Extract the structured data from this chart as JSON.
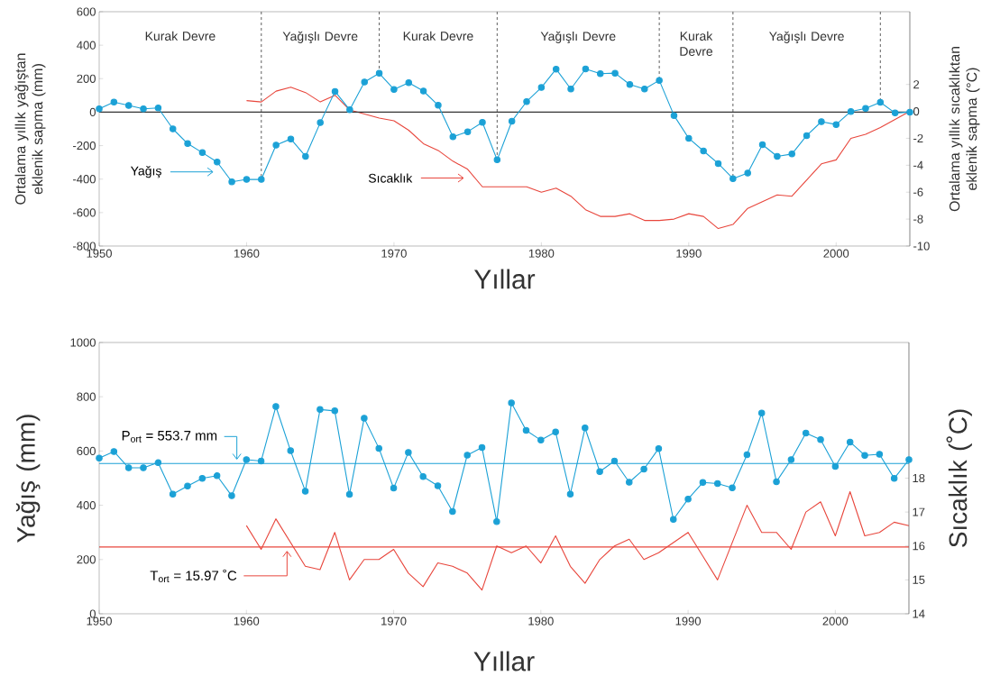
{
  "chart_data": [
    {
      "type": "line",
      "xlabel": "Yıllar",
      "ylabel": "Ortalama yıllık yağıştan eklenik sapma (mm)",
      "y2label": "Ortalama yıllık sıcaklıktan eklenik sapma (°C)",
      "xlim": [
        1950,
        2005
      ],
      "xticks": [
        1950,
        1960,
        1970,
        1980,
        1990,
        2000
      ],
      "ylim": [
        -800,
        600
      ],
      "yticks": [
        -800,
        -600,
        -400,
        -200,
        0,
        200,
        400,
        600
      ],
      "y2lim": [
        -10,
        7.4
      ],
      "y2ticks": [
        -10,
        -8,
        -6,
        -4,
        -2,
        0,
        2
      ],
      "legend": "bottom left",
      "series": [
        {
          "name": "Yağış",
          "color": "#1ba1d6",
          "marker": "circle",
          "x": [
            1950,
            1951,
            1952,
            1953,
            1954,
            1955,
            1956,
            1957,
            1958,
            1959,
            1960,
            1961,
            1962,
            1963,
            1964,
            1965,
            1966,
            1967,
            1968,
            1969,
            1970,
            1971,
            1972,
            1973,
            1974,
            1975,
            1976,
            1977,
            1978,
            1979,
            1980,
            1981,
            1982,
            1983,
            1984,
            1985,
            1986,
            1987,
            1988,
            1989,
            1990,
            1991,
            1992,
            1993,
            1994,
            1995,
            1996,
            1997,
            1998,
            1999,
            2000,
            2001,
            2002,
            2003,
            2004,
            2005
          ],
          "values": [
            20,
            60,
            40,
            20,
            25,
            -100,
            -188,
            -242,
            -298,
            -416,
            -402,
            -402,
            -197,
            -160,
            -264,
            -63,
            124,
            14,
            180,
            232,
            136,
            176,
            126,
            41,
            -147,
            -117,
            -61,
            -285,
            -54,
            63,
            147,
            257,
            138,
            258,
            230,
            233,
            165,
            138,
            190,
            -20,
            -156,
            -232,
            -307,
            -397,
            -364,
            -194,
            -264,
            -250,
            -140,
            -57,
            -74,
            4,
            22,
            59,
            -5,
            0
          ]
        },
        {
          "name": "Sıcaklık",
          "color": "#e8463c",
          "axis": "y2",
          "x": [
            1960,
            1961,
            1962,
            1963,
            1964,
            1965,
            1966,
            1967,
            1968,
            1969,
            1970,
            1971,
            1972,
            1973,
            1974,
            1975,
            1976,
            1977,
            1978,
            1979,
            1980,
            1981,
            1982,
            1983,
            1984,
            1985,
            1986,
            1987,
            1988,
            1989,
            1990,
            1991,
            1992,
            1993,
            1994,
            1995,
            1996,
            1997,
            1998,
            1999,
            2000,
            2001,
            2002,
            2003,
            2004,
            2005
          ],
          "values": [
            0.8,
            0.7,
            1.5,
            1.8,
            1.4,
            0.7,
            1.2,
            0.1,
            -0.2,
            -0.5,
            -0.7,
            -1.4,
            -2.4,
            -2.9,
            -3.7,
            -4.3,
            -5.6,
            -5.6,
            -5.6,
            -5.6,
            -6.0,
            -5.7,
            -6.3,
            -7.3,
            -7.8,
            -7.8,
            -7.6,
            -8.1,
            -8.1,
            -8.0,
            -7.6,
            -7.8,
            -8.7,
            -8.4,
            -7.2,
            -6.7,
            -6.2,
            -6.3,
            -5.1,
            -3.9,
            -3.6,
            -2.0,
            -1.7,
            -1.2,
            -0.6,
            0
          ]
        }
      ],
      "ref_lines": [
        {
          "axis": "y",
          "value": 0,
          "color": "#333333"
        },
        {
          "axis": "x",
          "value": 1961,
          "color": "#4d4d4d",
          "line_style": "dashed"
        },
        {
          "axis": "x",
          "value": 1969,
          "color": "#4d4d4d",
          "line_style": "dashed"
        },
        {
          "axis": "x",
          "value": 1977,
          "color": "#4d4d4d",
          "line_style": "dashed"
        },
        {
          "axis": "x",
          "value": 1988,
          "color": "#4d4d4d",
          "line_style": "dashed"
        },
        {
          "axis": "x",
          "value": 1993,
          "color": "#4d4d4d",
          "line_style": "dashed"
        },
        {
          "axis": "x",
          "value": 2003,
          "color": "#4d4d4d",
          "line_style": "dashed"
        }
      ],
      "annotations": [
        "Kurak Devre",
        "Yağışlı Devre",
        "Kurak Devre",
        "Yağışlı Devre",
        "Kurak Devre",
        "Yağışlı Devre"
      ]
    },
    {
      "type": "line",
      "xlabel": "Yıllar",
      "ylabel": "Yağış (mm)",
      "y2label": "Sıcaklık (˚C)",
      "xlim": [
        1950,
        2005
      ],
      "xticks": [
        1950,
        1960,
        1970,
        1980,
        1990,
        2000
      ],
      "ylim": [
        0,
        1000
      ],
      "yticks": [
        0,
        200,
        400,
        600,
        800,
        1000
      ],
      "y2lim": [
        14,
        22
      ],
      "y2ticks": [
        14,
        15,
        16,
        17,
        18
      ],
      "series": [
        {
          "color": "#1ba1d6",
          "marker": "circle",
          "x": [
            1950,
            1951,
            1952,
            1953,
            1954,
            1955,
            1956,
            1957,
            1958,
            1959,
            1960,
            1961,
            1962,
            1963,
            1964,
            1965,
            1966,
            1967,
            1968,
            1969,
            1970,
            1971,
            1972,
            1973,
            1974,
            1975,
            1976,
            1977,
            1978,
            1979,
            1980,
            1981,
            1982,
            1983,
            1984,
            1985,
            1986,
            1987,
            1988,
            1989,
            1990,
            1991,
            1992,
            1993,
            1994,
            1995,
            1996,
            1997,
            1998,
            1999,
            2000,
            2001,
            2002,
            2003,
            2004,
            2005
          ],
          "values": [
            574,
            598,
            538,
            538,
            557,
            441,
            471,
            499,
            509,
            435,
            568,
            563,
            764,
            601,
            452,
            753,
            748,
            440,
            721,
            610,
            463,
            595,
            506,
            472,
            377,
            585,
            613,
            340,
            777,
            676,
            640,
            670,
            441,
            685,
            524,
            563,
            485,
            533,
            609,
            348,
            423,
            484,
            480,
            464,
            586,
            740,
            487,
            568,
            666,
            642,
            543,
            633,
            584,
            588,
            499,
            568
          ]
        },
        {
          "color": "#e8463c",
          "axis": "y2",
          "x": [
            1960,
            1961,
            1962,
            1963,
            1964,
            1965,
            1966,
            1967,
            1968,
            1969,
            1970,
            1971,
            1972,
            1973,
            1974,
            1975,
            1976,
            1977,
            1978,
            1979,
            1980,
            1981,
            1982,
            1983,
            1984,
            1985,
            1986,
            1987,
            1988,
            1989,
            1990,
            1991,
            1992,
            1993,
            1994,
            1995,
            1996,
            1997,
            1998,
            1999,
            2000,
            2001,
            2002,
            2003,
            2004,
            2005
          ],
          "values": [
            16.6,
            15.9,
            16.8,
            16.1,
            15.4,
            15.3,
            16.4,
            15.0,
            15.6,
            15.6,
            15.9,
            15.2,
            14.8,
            15.5,
            15.4,
            15.2,
            14.7,
            16.0,
            15.8,
            16.0,
            15.5,
            16.3,
            15.4,
            14.9,
            15.6,
            16.0,
            16.2,
            15.6,
            15.8,
            16.1,
            16.4,
            15.7,
            15.0,
            16.1,
            17.2,
            16.4,
            16.4,
            15.9,
            17.0,
            17.3,
            16.3,
            17.6,
            16.3,
            16.4,
            16.7,
            16.6
          ]
        }
      ],
      "ref_lines": [
        {
          "axis": "y",
          "value": 553.7,
          "label": "P$_{ort}$ = 553.7 mm",
          "color": "#1ba1d6"
        },
        {
          "axis": "y2",
          "value": 15.97,
          "label": "T$_{ort}$ = 15.97 ˚C",
          "color": "#e8463c"
        }
      ]
    }
  ]
}
